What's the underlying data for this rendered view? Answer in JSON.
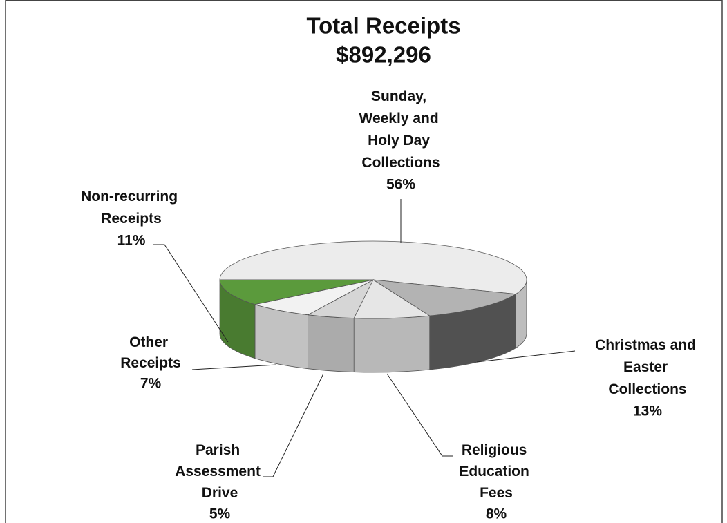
{
  "chart_data": {
    "type": "pie3d",
    "title": "Total Receipts",
    "subtitle": "$892,296",
    "categories": [
      "Sunday, Weekly and Holy Day Collections",
      "Christmas and Easter Collections",
      "Religious Education Fees",
      "Parish Assessment Drive",
      "Other Receipts",
      "Non-recurring Receipts"
    ],
    "values": [
      56,
      13,
      8,
      5,
      7,
      11
    ],
    "value_labels": [
      "56%",
      "13%",
      "8%",
      "5%",
      "7%",
      "11%"
    ],
    "colors": [
      "#ececec",
      "#b3b3b3",
      "#e6e6e6",
      "#d6d6d6",
      "#f2f2f2",
      "#5b9a3c"
    ]
  }
}
